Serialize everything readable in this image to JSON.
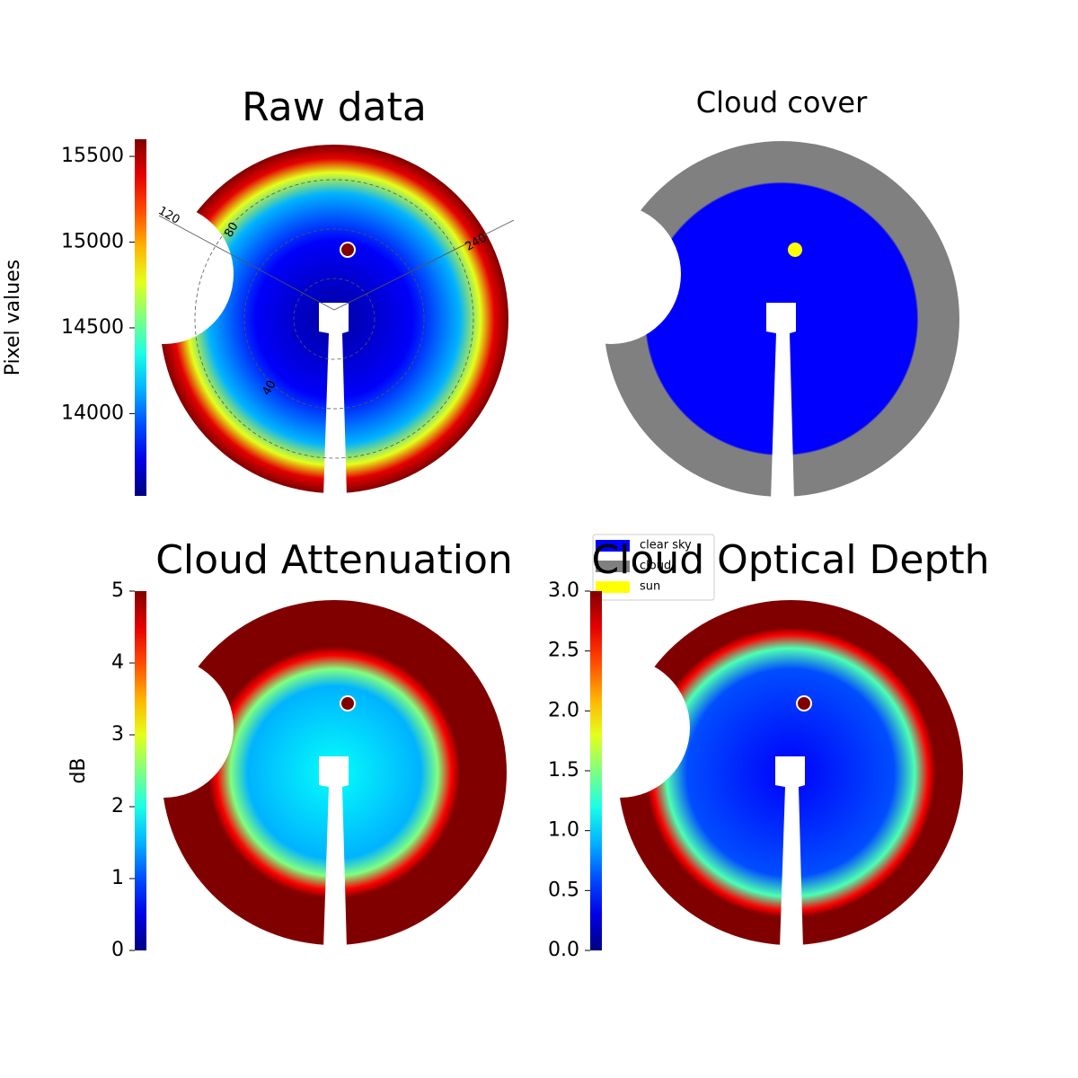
{
  "chart_data": [
    {
      "type": "image",
      "title": "Raw data",
      "colormap": "jet",
      "colorbar_label": "Pixel values",
      "ylim": [
        13520,
        15600
      ],
      "yticks": [
        14000,
        14500,
        15000,
        15500
      ],
      "annotations": [
        "120",
        "80",
        "240",
        "40"
      ]
    },
    {
      "type": "image",
      "title": "Cloud cover",
      "legend": [
        {
          "name": "clear sky",
          "color": "#0000ff"
        },
        {
          "name": "cloud",
          "color": "#808080"
        },
        {
          "name": "sun",
          "color": "#ffff00"
        }
      ]
    },
    {
      "type": "image",
      "title": "Cloud Attenuation",
      "colormap": "jet",
      "colorbar_label": "dB",
      "ylim": [
        0,
        5
      ],
      "yticks": [
        0,
        1,
        2,
        3,
        4,
        5
      ]
    },
    {
      "type": "image",
      "title": "Cloud Optical Depth",
      "colormap": "jet",
      "ylim": [
        0,
        3
      ],
      "yticks": [
        {
          "value": 0,
          "label": "0.0"
        },
        0.5,
        {
          "value": 1,
          "label": "1.0"
        },
        1.5,
        {
          "value": 2,
          "label": "2.0"
        },
        2.5,
        {
          "value": 3,
          "label": "3.0"
        }
      ]
    }
  ]
}
